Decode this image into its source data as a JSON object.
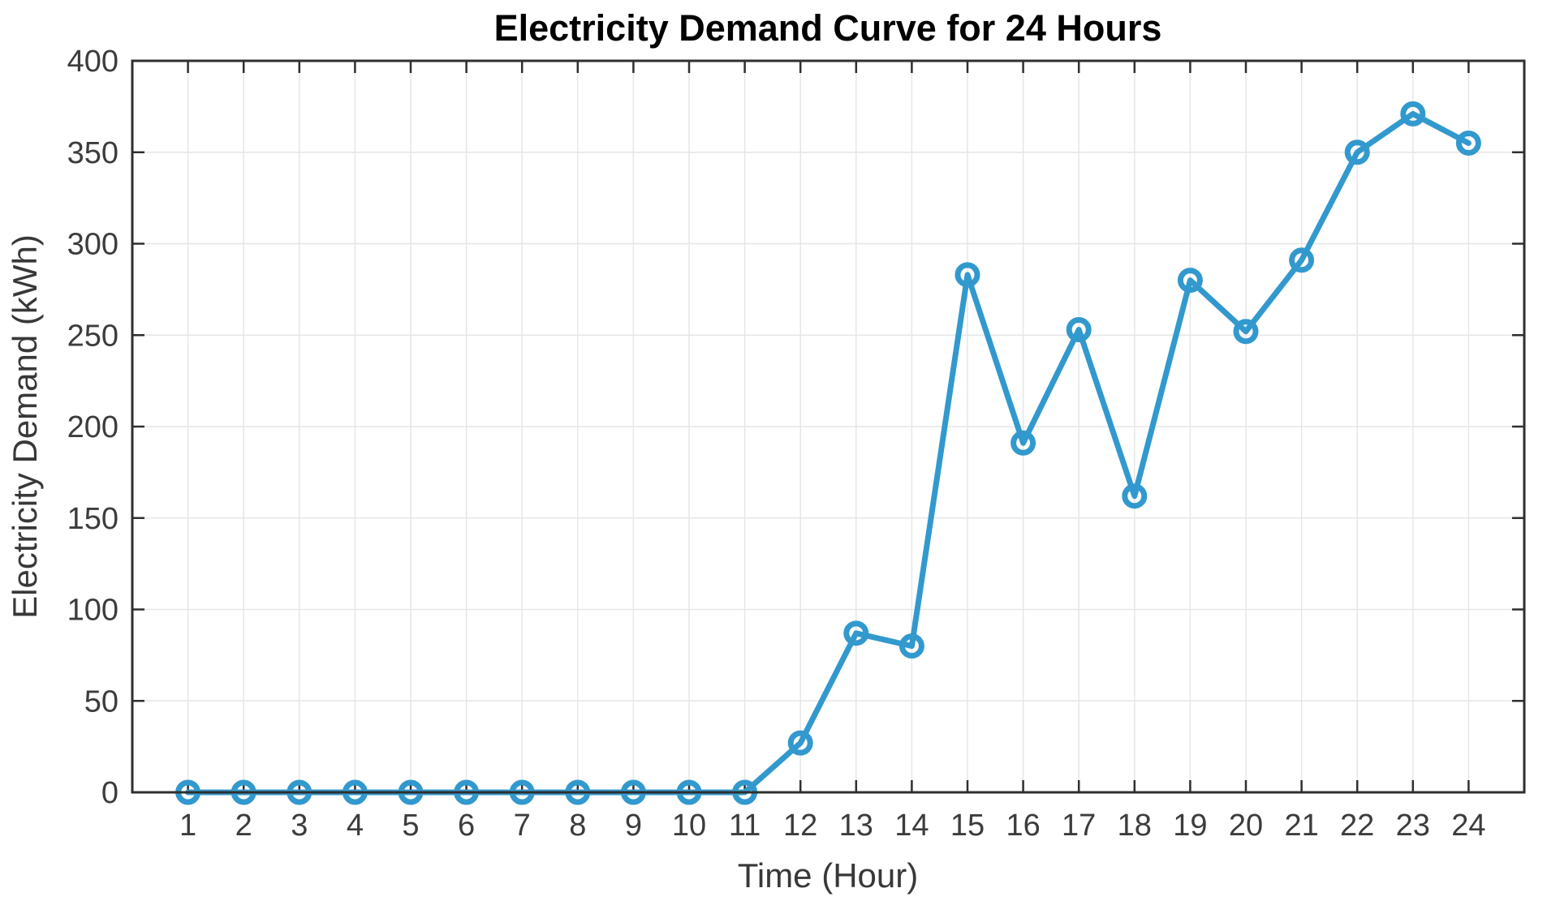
{
  "chart_data": {
    "type": "line",
    "title": "Electricity Demand Curve for 24 Hours",
    "xlabel": "Time (Hour)",
    "ylabel": "Electricity Demand (kWh)",
    "x": [
      1,
      2,
      3,
      4,
      5,
      6,
      7,
      8,
      9,
      10,
      11,
      12,
      13,
      14,
      15,
      16,
      17,
      18,
      19,
      20,
      21,
      22,
      23,
      24
    ],
    "values": [
      0,
      0,
      0,
      0,
      0,
      0,
      0,
      0,
      0,
      0,
      0,
      27,
      87,
      80,
      283,
      191,
      253,
      162,
      280,
      252,
      291,
      350,
      371,
      355
    ],
    "series_name": "Electricity Demand",
    "xlim": [
      0,
      25
    ],
    "ylim": [
      0,
      400
    ],
    "xticks": [
      1,
      2,
      3,
      4,
      5,
      6,
      7,
      8,
      9,
      10,
      11,
      12,
      13,
      14,
      15,
      16,
      17,
      18,
      19,
      20,
      21,
      22,
      23,
      24
    ],
    "yticks": [
      0,
      50,
      100,
      150,
      200,
      250,
      300,
      350,
      400
    ],
    "grid": true,
    "legend": "none",
    "style": {
      "line_color": "#3299CE",
      "marker": "open-circle",
      "marker_color": "#3299CE",
      "grid_color": "#E6E6E6",
      "axis_color": "#2F2F2F",
      "background": "#FFFFFF"
    }
  }
}
